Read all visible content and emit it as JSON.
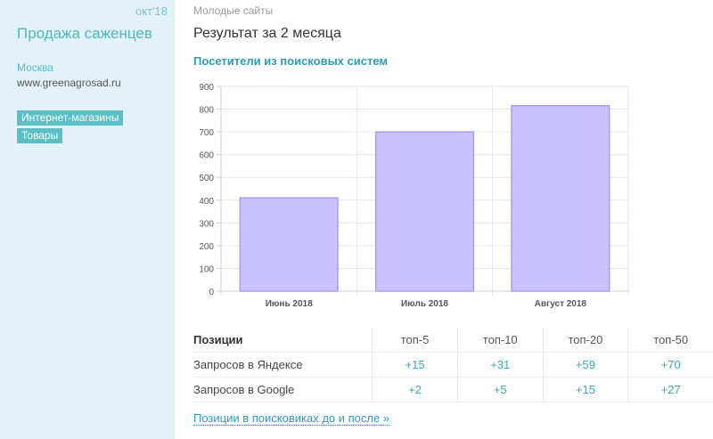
{
  "sidebar": {
    "date": "окт'18",
    "title": "Продажа саженцев",
    "city": "Москва",
    "site": "www.greenagrosad.ru",
    "tags": [
      "Интернет-магазины",
      "Товары"
    ]
  },
  "main": {
    "breadcrumb": "Молодые сайты",
    "heading": "Результат за 2 месяца",
    "chart_title": "Посетители из поисковых систем"
  },
  "chart_data": {
    "type": "bar",
    "title": "Посетители из поисковых систем",
    "categories": [
      "Июнь 2018",
      "Июль 2018",
      "Август 2018"
    ],
    "values": [
      410,
      700,
      815
    ],
    "ylim": [
      0,
      900
    ],
    "yticks": [
      0,
      100,
      200,
      300,
      400,
      500,
      600,
      700,
      800,
      900
    ],
    "grid": true,
    "bar_color": "#cbc3ff",
    "bar_border": "#a89bf0"
  },
  "positions": {
    "header": "Позиции",
    "columns": [
      "топ-5",
      "топ-10",
      "топ-20",
      "топ-50"
    ],
    "rows": [
      {
        "label": "Запросов в Яндексе",
        "values": [
          "+15",
          "+31",
          "+59",
          "+70"
        ]
      },
      {
        "label": "Запросов в Google",
        "values": [
          "+2",
          "+5",
          "+15",
          "+27"
        ]
      }
    ],
    "link": "Позиции в поисковиках до и после »"
  }
}
